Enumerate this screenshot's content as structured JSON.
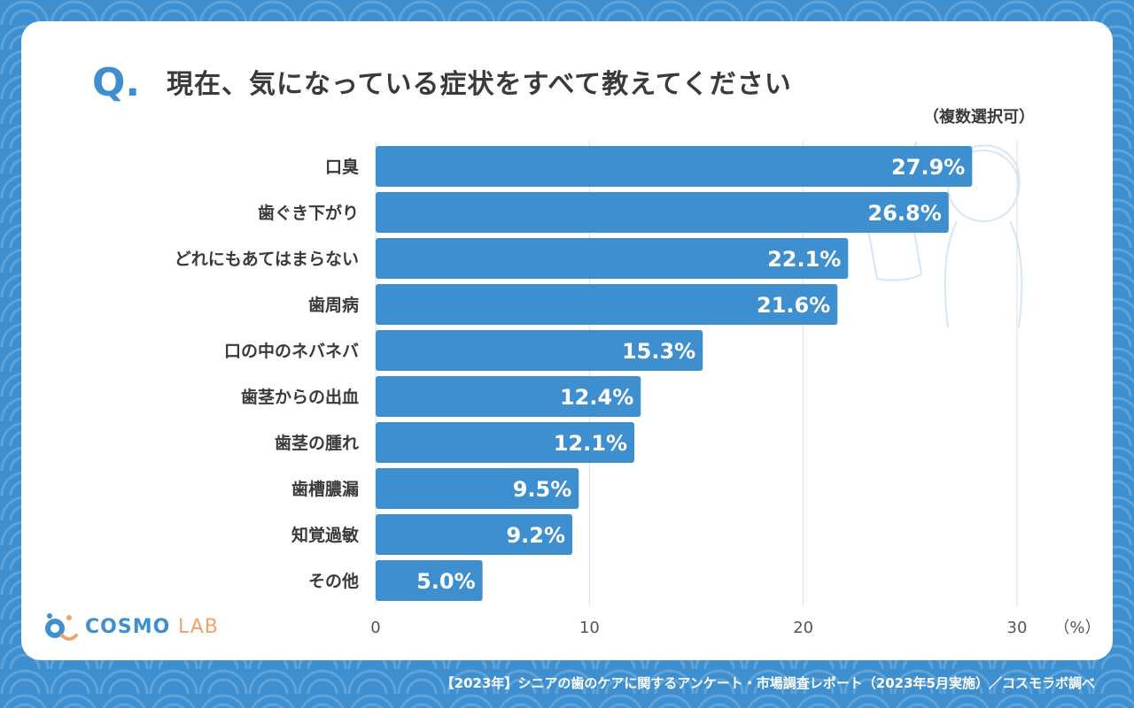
{
  "header": {
    "q_mark": "Q.",
    "title": "現在、気になっている症状をすべて教えてください",
    "subtitle": "（複数選択可）"
  },
  "chart_data": {
    "type": "bar",
    "orientation": "horizontal",
    "categories": [
      "口臭",
      "歯ぐき下がり",
      "どれにもあてはまらない",
      "歯周病",
      "口の中のネバネバ",
      "歯茎からの出血",
      "歯茎の腫れ",
      "歯槽膿漏",
      "知覚過敏",
      "その他"
    ],
    "values": [
      27.9,
      26.8,
      22.1,
      21.6,
      15.3,
      12.4,
      12.1,
      9.5,
      9.2,
      5.0
    ],
    "value_labels": [
      "27.9%",
      "26.8%",
      "22.1%",
      "21.6%",
      "15.3%",
      "12.4%",
      "12.1%",
      "9.5%",
      "9.2%",
      "5.0%"
    ],
    "xticks": [
      0,
      10,
      20,
      30
    ],
    "xtick_labels": [
      "0",
      "10",
      "20",
      "30"
    ],
    "xlim": [
      0,
      30
    ],
    "unit_label": "（%）",
    "grid": true,
    "bar_color": "#3d8fd0"
  },
  "logo": {
    "text_main": "COSMO",
    "text_sub": "LAB"
  },
  "footer": {
    "source": "【2023年】シニアの歯のケアに関するアンケート・市場調査レポート（2023年5月実施）／コスモラボ調べ"
  },
  "colors": {
    "background": "#3d8fd0",
    "bar": "#3d8fd0",
    "text": "#3a3a3a",
    "logo_accent": "#f0a36b"
  }
}
